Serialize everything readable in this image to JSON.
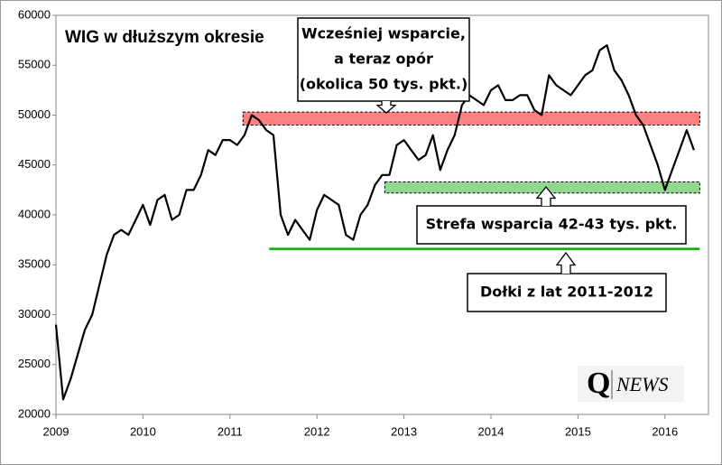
{
  "chart_data": {
    "type": "line",
    "title": "WIG w dłuższym okresie",
    "title_color": "#ff0000",
    "xlim": [
      2009,
      2016.5
    ],
    "xticks": [
      2009,
      2010,
      2011,
      2012,
      2013,
      2014,
      2015,
      2016
    ],
    "ylim": [
      20000,
      60000
    ],
    "yticks": [
      20000,
      25000,
      30000,
      35000,
      40000,
      45000,
      50000,
      55000,
      60000
    ],
    "grid": false,
    "series": [
      {
        "name": "WIG",
        "color": "#000000",
        "x": [
          2009,
          2009.083,
          2009.167,
          2009.25,
          2009.333,
          2009.417,
          2009.5,
          2009.583,
          2009.667,
          2009.75,
          2009.833,
          2009.917,
          2010,
          2010.083,
          2010.167,
          2010.25,
          2010.333,
          2010.417,
          2010.5,
          2010.583,
          2010.667,
          2010.75,
          2010.833,
          2010.917,
          2011,
          2011.083,
          2011.167,
          2011.25,
          2011.333,
          2011.417,
          2011.5,
          2011.583,
          2011.667,
          2011.75,
          2011.833,
          2011.917,
          2012,
          2012.083,
          2012.167,
          2012.25,
          2012.333,
          2012.417,
          2012.5,
          2012.583,
          2012.667,
          2012.75,
          2012.833,
          2012.917,
          2013,
          2013.083,
          2013.167,
          2013.25,
          2013.333,
          2013.417,
          2013.5,
          2013.583,
          2013.667,
          2013.75,
          2013.833,
          2013.917,
          2014,
          2014.083,
          2014.167,
          2014.25,
          2014.333,
          2014.417,
          2014.5,
          2014.583,
          2014.667,
          2014.75,
          2014.833,
          2014.917,
          2015,
          2015.083,
          2015.167,
          2015.25,
          2015.333,
          2015.417,
          2015.5,
          2015.583,
          2015.667,
          2015.75,
          2015.833,
          2015.917,
          2016,
          2016.083,
          2016.167,
          2016.25,
          2016.333
        ],
        "values": [
          29000,
          21500,
          23500,
          26000,
          28500,
          30000,
          33000,
          36000,
          38000,
          38500,
          38000,
          39500,
          41000,
          39000,
          41500,
          42000,
          39500,
          40000,
          42500,
          42500,
          44000,
          46500,
          46000,
          47500,
          47500,
          47000,
          48000,
          50000,
          49500,
          48500,
          48000,
          40000,
          38000,
          39500,
          38500,
          37500,
          40500,
          42000,
          41500,
          41000,
          38000,
          37500,
          40000,
          41000,
          43000,
          44000,
          44000,
          47000,
          47500,
          46500,
          45500,
          46000,
          48000,
          44500,
          46500,
          48000,
          51000,
          52000,
          51500,
          51000,
          52500,
          53000,
          51500,
          51500,
          52000,
          52000,
          50500,
          50000,
          54000,
          53000,
          52500,
          52000,
          53000,
          54000,
          54500,
          56500,
          57000,
          54500,
          53500,
          52000,
          50000,
          49000,
          47000,
          45000,
          42500,
          44500,
          46500,
          48500,
          46500
        ]
      }
    ],
    "zones": [
      {
        "y": [
          49000,
          50300
        ],
        "x": [
          2011.15,
          2016.4
        ],
        "color": "#ff8080"
      },
      {
        "y": [
          42200,
          43300
        ],
        "x": [
          2012.78,
          2016.4
        ],
        "color": "#90d890"
      }
    ],
    "levels": [
      {
        "y": 36600,
        "x": [
          2011.45,
          2016.4
        ],
        "color": "#00b000"
      }
    ],
    "annotations": [
      {
        "lines": [
          "Wcześniej wsparcie,",
          "a teraz opór",
          "(okolica 50 tys. pkt.)"
        ]
      },
      {
        "lines": [
          "Strefa wsparcia 42-43 tys. pkt."
        ]
      },
      {
        "lines": [
          "Dołki z lat 2011-2012"
        ]
      }
    ],
    "logo": {
      "q": "Q",
      "text": "NEWS"
    }
  }
}
